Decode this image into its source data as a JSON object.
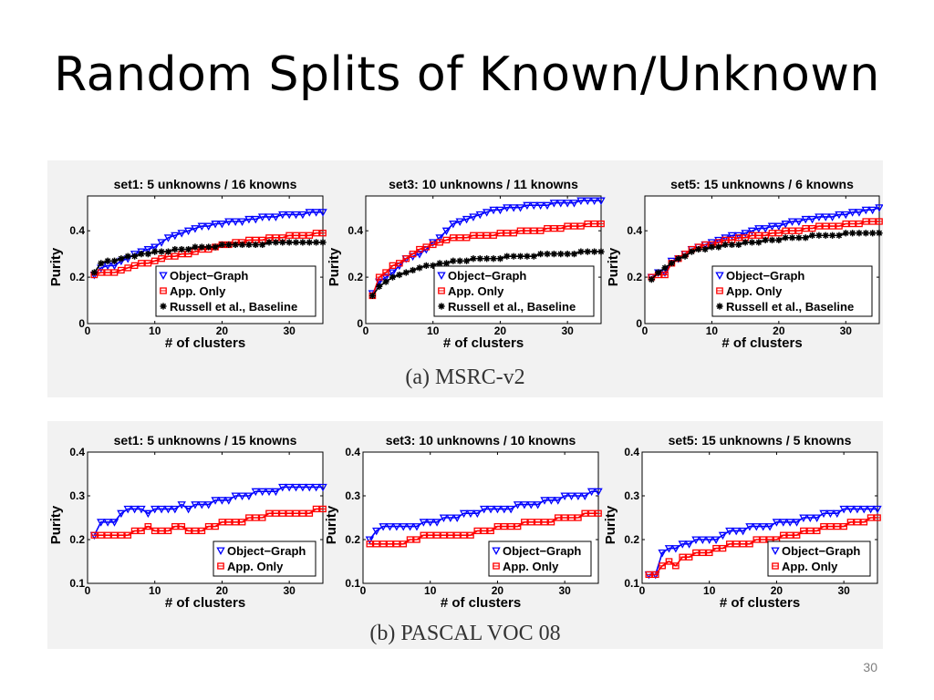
{
  "slide": {
    "title": "Random Splits of Known/Unknown",
    "page_number": "30"
  },
  "captions": {
    "a": "(a)  MSRC-v2",
    "b": "(b)  PASCAL VOC 08"
  },
  "colors": {
    "object_graph": "#0000ff",
    "app_only": "#ff0000",
    "baseline": "#000000",
    "panel_bg": "#f2f2f2"
  },
  "chart_data": [
    {
      "type": "line",
      "title": "set1: 5 unknowns / 16 knowns",
      "xlabel": "# of clusters",
      "ylabel": "Purity",
      "xlim": [
        0,
        35
      ],
      "ylim": [
        0,
        0.55
      ],
      "xticks": [
        0,
        10,
        20,
        30
      ],
      "yticks": [
        0,
        0.2,
        0.4
      ],
      "ytick_labels": [
        "0",
        "0.2",
        "0.4"
      ],
      "x": [
        1,
        2,
        3,
        4,
        5,
        6,
        7,
        8,
        9,
        10,
        11,
        12,
        13,
        14,
        15,
        16,
        17,
        18,
        19,
        20,
        21,
        22,
        23,
        24,
        25,
        26,
        27,
        28,
        29,
        30,
        31,
        32,
        33,
        34,
        35
      ],
      "legend_loc": "bottom-right",
      "series": [
        {
          "name": "Object−Graph",
          "marker": "triangle-down",
          "color": "#0000ff",
          "values": [
            0.21,
            0.24,
            0.25,
            0.25,
            0.27,
            0.28,
            0.3,
            0.31,
            0.32,
            0.33,
            0.35,
            0.37,
            0.38,
            0.39,
            0.4,
            0.41,
            0.42,
            0.42,
            0.43,
            0.43,
            0.44,
            0.44,
            0.44,
            0.45,
            0.45,
            0.46,
            0.46,
            0.46,
            0.47,
            0.47,
            0.47,
            0.47,
            0.48,
            0.48,
            0.48
          ]
        },
        {
          "name": "App. Only",
          "marker": "square",
          "color": "#ff0000",
          "values": [
            0.21,
            0.22,
            0.22,
            0.22,
            0.23,
            0.24,
            0.25,
            0.26,
            0.26,
            0.27,
            0.28,
            0.29,
            0.29,
            0.3,
            0.3,
            0.31,
            0.32,
            0.32,
            0.33,
            0.34,
            0.34,
            0.35,
            0.35,
            0.36,
            0.36,
            0.36,
            0.37,
            0.37,
            0.37,
            0.38,
            0.38,
            0.38,
            0.38,
            0.39,
            0.39
          ]
        },
        {
          "name": "Russell et al., Baseline",
          "marker": "asterisk",
          "color": "#000000",
          "values": [
            0.22,
            0.26,
            0.27,
            0.27,
            0.28,
            0.29,
            0.29,
            0.3,
            0.3,
            0.31,
            0.31,
            0.31,
            0.32,
            0.32,
            0.32,
            0.33,
            0.33,
            0.33,
            0.33,
            0.34,
            0.34,
            0.34,
            0.34,
            0.34,
            0.34,
            0.34,
            0.35,
            0.35,
            0.35,
            0.35,
            0.35,
            0.35,
            0.35,
            0.35,
            0.35
          ]
        }
      ]
    },
    {
      "type": "line",
      "title": "set3: 10 unknowns / 11 knowns",
      "xlabel": "# of clusters",
      "ylabel": "Purity",
      "xlim": [
        0,
        35
      ],
      "ylim": [
        0,
        0.55
      ],
      "xticks": [
        0,
        10,
        20,
        30
      ],
      "yticks": [
        0,
        0.2,
        0.4
      ],
      "ytick_labels": [
        "0",
        "0.2",
        "0.4"
      ],
      "x": [
        1,
        2,
        3,
        4,
        5,
        6,
        7,
        8,
        9,
        10,
        11,
        12,
        13,
        14,
        15,
        16,
        17,
        18,
        19,
        20,
        21,
        22,
        23,
        24,
        25,
        26,
        27,
        28,
        29,
        30,
        31,
        32,
        33,
        34,
        35
      ],
      "legend_loc": "bottom-right",
      "series": [
        {
          "name": "Object−Graph",
          "marker": "triangle-down",
          "color": "#0000ff",
          "values": [
            0.13,
            0.18,
            0.2,
            0.22,
            0.25,
            0.28,
            0.29,
            0.3,
            0.32,
            0.35,
            0.37,
            0.4,
            0.43,
            0.44,
            0.45,
            0.46,
            0.47,
            0.48,
            0.49,
            0.49,
            0.5,
            0.5,
            0.5,
            0.51,
            0.51,
            0.51,
            0.51,
            0.52,
            0.52,
            0.52,
            0.52,
            0.53,
            0.53,
            0.53,
            0.53
          ]
        },
        {
          "name": "App. Only",
          "marker": "square",
          "color": "#ff0000",
          "values": [
            0.12,
            0.2,
            0.22,
            0.25,
            0.26,
            0.28,
            0.3,
            0.32,
            0.33,
            0.34,
            0.35,
            0.36,
            0.37,
            0.37,
            0.37,
            0.38,
            0.38,
            0.38,
            0.38,
            0.39,
            0.39,
            0.39,
            0.4,
            0.4,
            0.4,
            0.4,
            0.41,
            0.41,
            0.41,
            0.42,
            0.42,
            0.42,
            0.43,
            0.43,
            0.43
          ]
        },
        {
          "name": "Russell et al., Baseline",
          "marker": "asterisk",
          "color": "#000000",
          "values": [
            0.12,
            0.16,
            0.18,
            0.2,
            0.21,
            0.22,
            0.23,
            0.24,
            0.25,
            0.25,
            0.26,
            0.26,
            0.27,
            0.27,
            0.27,
            0.28,
            0.28,
            0.28,
            0.28,
            0.28,
            0.29,
            0.29,
            0.29,
            0.29,
            0.29,
            0.3,
            0.3,
            0.3,
            0.3,
            0.3,
            0.3,
            0.31,
            0.31,
            0.31,
            0.31
          ]
        }
      ]
    },
    {
      "type": "line",
      "title": "set5: 15 unknowns / 6 knowns",
      "xlabel": "# of clusters",
      "ylabel": "Purity",
      "xlim": [
        0,
        35
      ],
      "ylim": [
        0,
        0.55
      ],
      "xticks": [
        0,
        10,
        20,
        30
      ],
      "yticks": [
        0,
        0.2,
        0.4
      ],
      "ytick_labels": [
        "0",
        "0.2",
        "0.4"
      ],
      "x": [
        1,
        2,
        3,
        4,
        5,
        6,
        7,
        8,
        9,
        10,
        11,
        12,
        13,
        14,
        15,
        16,
        17,
        18,
        19,
        20,
        21,
        22,
        23,
        24,
        25,
        26,
        27,
        28,
        29,
        30,
        31,
        32,
        33,
        34,
        35
      ],
      "legend_loc": "bottom-right",
      "series": [
        {
          "name": "Object−Graph",
          "marker": "triangle-down",
          "color": "#0000ff",
          "values": [
            0.2,
            0.22,
            0.22,
            0.27,
            0.28,
            0.3,
            0.32,
            0.33,
            0.34,
            0.35,
            0.36,
            0.37,
            0.38,
            0.38,
            0.39,
            0.4,
            0.41,
            0.41,
            0.42,
            0.42,
            0.43,
            0.44,
            0.44,
            0.45,
            0.45,
            0.46,
            0.46,
            0.46,
            0.47,
            0.47,
            0.48,
            0.48,
            0.49,
            0.49,
            0.5
          ]
        },
        {
          "name": "App. Only",
          "marker": "square",
          "color": "#ff0000",
          "values": [
            0.2,
            0.21,
            0.21,
            0.26,
            0.28,
            0.3,
            0.32,
            0.33,
            0.34,
            0.34,
            0.35,
            0.36,
            0.36,
            0.37,
            0.37,
            0.38,
            0.38,
            0.38,
            0.39,
            0.39,
            0.4,
            0.4,
            0.4,
            0.41,
            0.41,
            0.42,
            0.42,
            0.42,
            0.42,
            0.43,
            0.43,
            0.43,
            0.44,
            0.44,
            0.44
          ]
        },
        {
          "name": "Russell et al., Baseline",
          "marker": "asterisk",
          "color": "#000000",
          "values": [
            0.19,
            0.22,
            0.24,
            0.26,
            0.28,
            0.29,
            0.31,
            0.32,
            0.32,
            0.33,
            0.33,
            0.34,
            0.34,
            0.34,
            0.35,
            0.35,
            0.35,
            0.36,
            0.36,
            0.36,
            0.37,
            0.37,
            0.37,
            0.37,
            0.38,
            0.38,
            0.38,
            0.38,
            0.38,
            0.39,
            0.39,
            0.39,
            0.39,
            0.39,
            0.39
          ]
        }
      ]
    },
    {
      "type": "line",
      "title": "set1: 5 unknowns / 15 knowns",
      "xlabel": "# of clusters",
      "ylabel": "Purity",
      "xlim": [
        0,
        35
      ],
      "ylim": [
        0.1,
        0.4
      ],
      "xticks": [
        0,
        10,
        20,
        30
      ],
      "yticks": [
        0.1,
        0.2,
        0.3,
        0.4
      ],
      "ytick_labels": [
        "0.1",
        "0.2",
        "0.3",
        "0.4"
      ],
      "x": [
        1,
        2,
        3,
        4,
        5,
        6,
        7,
        8,
        9,
        10,
        11,
        12,
        13,
        14,
        15,
        16,
        17,
        18,
        19,
        20,
        21,
        22,
        23,
        24,
        25,
        26,
        27,
        28,
        29,
        30,
        31,
        32,
        33,
        34,
        35
      ],
      "legend_loc": "bottom-right",
      "series": [
        {
          "name": "Object−Graph",
          "marker": "triangle-down",
          "color": "#0000ff",
          "values": [
            0.21,
            0.24,
            0.24,
            0.24,
            0.26,
            0.27,
            0.27,
            0.27,
            0.26,
            0.27,
            0.27,
            0.27,
            0.27,
            0.28,
            0.27,
            0.28,
            0.28,
            0.28,
            0.29,
            0.29,
            0.29,
            0.3,
            0.3,
            0.3,
            0.31,
            0.31,
            0.31,
            0.31,
            0.32,
            0.32,
            0.32,
            0.32,
            0.32,
            0.32,
            0.32
          ]
        },
        {
          "name": "App. Only",
          "marker": "square",
          "color": "#ff0000",
          "values": [
            0.21,
            0.21,
            0.21,
            0.21,
            0.21,
            0.21,
            0.22,
            0.22,
            0.23,
            0.22,
            0.22,
            0.22,
            0.23,
            0.23,
            0.22,
            0.22,
            0.22,
            0.23,
            0.23,
            0.24,
            0.24,
            0.24,
            0.24,
            0.25,
            0.25,
            0.25,
            0.26,
            0.26,
            0.26,
            0.26,
            0.26,
            0.26,
            0.26,
            0.27,
            0.27
          ]
        }
      ]
    },
    {
      "type": "line",
      "title": "set3: 10 unknowns / 10 knowns",
      "xlabel": "# of clusters",
      "ylabel": "Purity",
      "xlim": [
        0,
        35
      ],
      "ylim": [
        0.1,
        0.4
      ],
      "xticks": [
        0,
        10,
        20,
        30
      ],
      "yticks": [
        0.1,
        0.2,
        0.3,
        0.4
      ],
      "ytick_labels": [
        "0.1",
        "0.2",
        "0.3",
        "0.4"
      ],
      "x": [
        1,
        2,
        3,
        4,
        5,
        6,
        7,
        8,
        9,
        10,
        11,
        12,
        13,
        14,
        15,
        16,
        17,
        18,
        19,
        20,
        21,
        22,
        23,
        24,
        25,
        26,
        27,
        28,
        29,
        30,
        31,
        32,
        33,
        34,
        35
      ],
      "legend_loc": "bottom-right",
      "series": [
        {
          "name": "Object−Graph",
          "marker": "triangle-down",
          "color": "#0000ff",
          "values": [
            0.2,
            0.22,
            0.23,
            0.23,
            0.23,
            0.23,
            0.23,
            0.23,
            0.24,
            0.24,
            0.24,
            0.25,
            0.25,
            0.25,
            0.26,
            0.26,
            0.26,
            0.27,
            0.27,
            0.27,
            0.27,
            0.27,
            0.28,
            0.28,
            0.28,
            0.28,
            0.29,
            0.29,
            0.29,
            0.3,
            0.3,
            0.3,
            0.3,
            0.31,
            0.31
          ]
        },
        {
          "name": "App. Only",
          "marker": "square",
          "color": "#ff0000",
          "values": [
            0.19,
            0.19,
            0.19,
            0.19,
            0.19,
            0.19,
            0.2,
            0.2,
            0.21,
            0.21,
            0.21,
            0.21,
            0.21,
            0.21,
            0.21,
            0.21,
            0.22,
            0.22,
            0.22,
            0.23,
            0.23,
            0.23,
            0.23,
            0.24,
            0.24,
            0.24,
            0.24,
            0.24,
            0.25,
            0.25,
            0.25,
            0.25,
            0.26,
            0.26,
            0.26
          ]
        }
      ]
    },
    {
      "type": "line",
      "title": "set5: 15 unknowns / 5 knowns",
      "xlabel": "# of clusters",
      "ylabel": "Purity",
      "xlim": [
        0,
        35
      ],
      "ylim": [
        0.1,
        0.4
      ],
      "xticks": [
        0,
        10,
        20,
        30
      ],
      "yticks": [
        0.1,
        0.2,
        0.3,
        0.4
      ],
      "ytick_labels": [
        "0.1",
        "0.2",
        "0.3",
        "0.4"
      ],
      "x": [
        1,
        2,
        3,
        4,
        5,
        6,
        7,
        8,
        9,
        10,
        11,
        12,
        13,
        14,
        15,
        16,
        17,
        18,
        19,
        20,
        21,
        22,
        23,
        24,
        25,
        26,
        27,
        28,
        29,
        30,
        31,
        32,
        33,
        34,
        35
      ],
      "legend_loc": "bottom-right",
      "series": [
        {
          "name": "Object−Graph",
          "marker": "triangle-down",
          "color": "#0000ff",
          "values": [
            0.12,
            0.12,
            0.17,
            0.18,
            0.18,
            0.19,
            0.19,
            0.2,
            0.2,
            0.2,
            0.2,
            0.21,
            0.22,
            0.22,
            0.22,
            0.23,
            0.23,
            0.23,
            0.23,
            0.24,
            0.24,
            0.24,
            0.24,
            0.25,
            0.25,
            0.25,
            0.26,
            0.26,
            0.26,
            0.27,
            0.27,
            0.27,
            0.27,
            0.27,
            0.27
          ]
        },
        {
          "name": "App. Only",
          "marker": "square",
          "color": "#ff0000",
          "values": [
            0.12,
            0.12,
            0.14,
            0.15,
            0.14,
            0.16,
            0.16,
            0.17,
            0.17,
            0.17,
            0.18,
            0.18,
            0.19,
            0.19,
            0.19,
            0.19,
            0.2,
            0.2,
            0.2,
            0.2,
            0.21,
            0.21,
            0.21,
            0.22,
            0.22,
            0.22,
            0.23,
            0.23,
            0.23,
            0.23,
            0.24,
            0.24,
            0.24,
            0.25,
            0.25
          ]
        }
      ]
    }
  ]
}
